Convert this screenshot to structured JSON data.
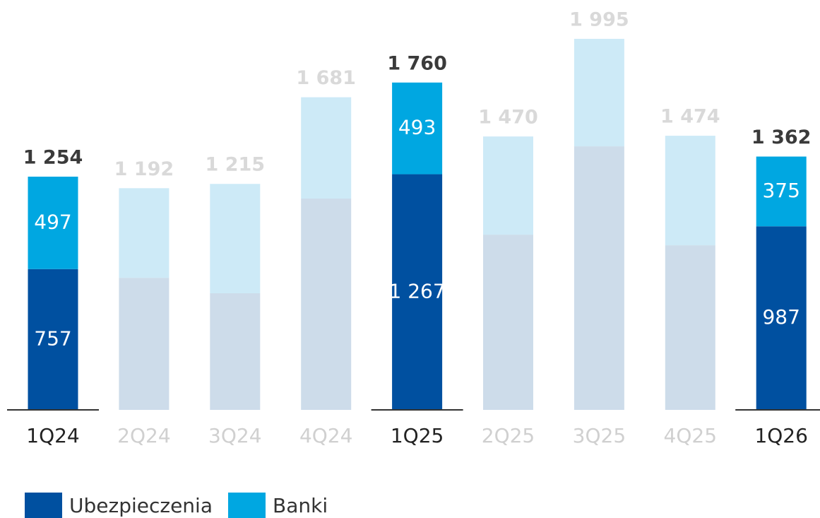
{
  "chart_data": {
    "type": "stacked_bar",
    "categories": [
      "1Q24",
      "2Q24",
      "3Q24",
      "4Q24",
      "1Q25",
      "2Q25",
      "3Q25",
      "4Q25",
      "1Q26"
    ],
    "series": [
      {
        "name": "Ubezpieczenia",
        "color": "#0050a0",
        "faded_color": "#cddcea",
        "values": [
          757,
          710,
          627,
          1136,
          1267,
          942,
          1417,
          885,
          987
        ],
        "value_labels": [
          "757",
          null,
          null,
          null,
          "1 267",
          null,
          null,
          null,
          "987"
        ]
      },
      {
        "name": "Banki",
        "color": "#00a7e1",
        "faded_color": "#cdeaf7",
        "values": [
          497,
          482,
          588,
          545,
          493,
          528,
          578,
          589,
          375
        ],
        "value_labels": [
          "497",
          null,
          null,
          null,
          "493",
          null,
          null,
          null,
          "375"
        ]
      }
    ],
    "totals": [
      1254,
      1192,
      1215,
      1681,
      1760,
      1470,
      1995,
      1474,
      1362
    ],
    "total_labels": [
      "1 254",
      "1 192",
      "1 215",
      "1 681",
      "1 760",
      "1 470",
      "1 995",
      "1 474",
      "1 362"
    ],
    "highlight": [
      true,
      false,
      false,
      false,
      true,
      false,
      false,
      false,
      true
    ],
    "ylim": [
      0,
      2200
    ]
  }
}
